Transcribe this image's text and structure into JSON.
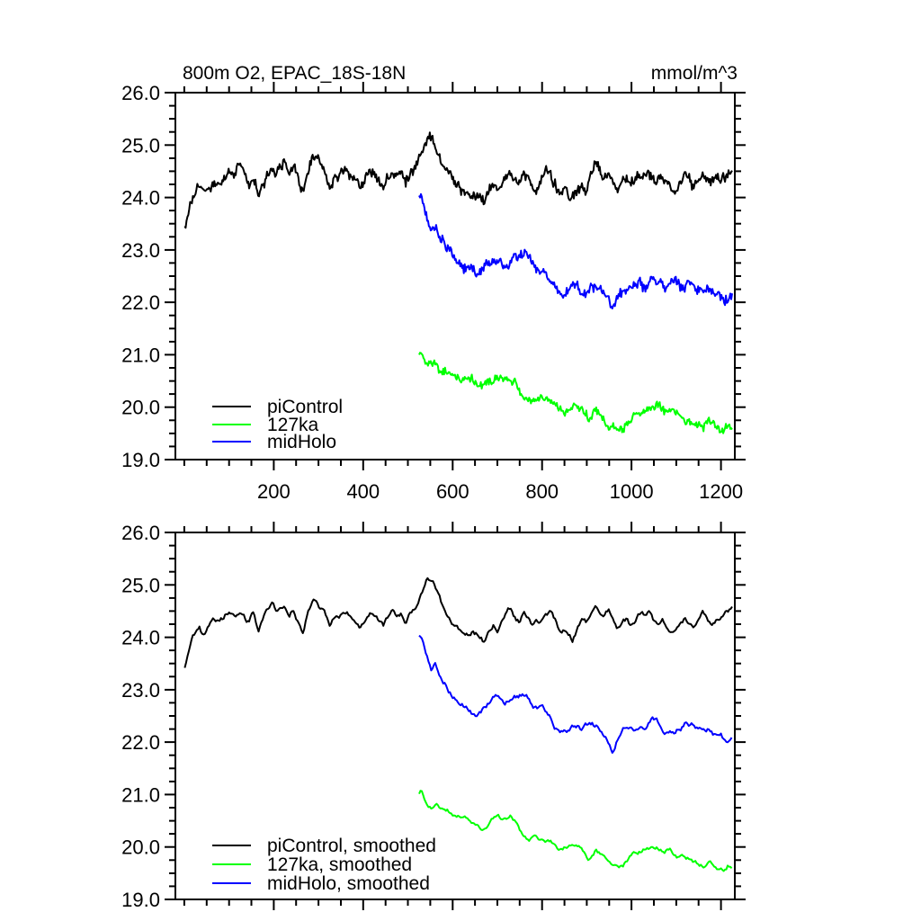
{
  "colors": {
    "background": "#ffffff",
    "axis": "#000000"
  },
  "chart_data": {
    "type": "line",
    "title": "800m O2, EPAC_18S-18N",
    "ylabel_units": "mmol/m^3",
    "grid": false,
    "x_axis": {
      "min": -20,
      "max": 1231,
      "major_ticks": [
        200,
        400,
        600,
        800,
        1000,
        1200
      ],
      "tick_labels": [
        "200",
        "400",
        "600",
        "800",
        "1000",
        "1200"
      ],
      "minor_step": 50
    },
    "y_axis": {
      "min": 19.0,
      "max": 26.0,
      "major_ticks": [
        26,
        25,
        24,
        23,
        22,
        21,
        20,
        19
      ],
      "tick_labels": [
        "26.0",
        "25.0",
        "24.0",
        "23.0",
        "22.0",
        "21.0",
        "20.0",
        "19.0"
      ],
      "minor_step": 0.25
    },
    "panels": [
      {
        "name": "raw",
        "x_labels_shown": true,
        "legend": [
          "piControl",
          "127ka",
          "midHolo"
        ],
        "legend_position": "lower-left"
      },
      {
        "name": "smoothed",
        "x_labels_shown": false,
        "legend": [
          "piControl, smoothed",
          "127ka, smoothed",
          "midHolo, smoothed"
        ],
        "legend_position": "lower-left"
      }
    ],
    "series": [
      {
        "name": "piControl",
        "color": "#000000",
        "x_start": 1,
        "x_end": 1225,
        "noise_amp_raw": 0.09,
        "noise_amp_smoothed": 0.045,
        "seed": 7,
        "anchors": [
          [
            1,
            23.45
          ],
          [
            8,
            23.7
          ],
          [
            15,
            23.9
          ],
          [
            25,
            24.1
          ],
          [
            33,
            24.2
          ],
          [
            42,
            24.0
          ],
          [
            52,
            24.15
          ],
          [
            62,
            24.25
          ],
          [
            72,
            24.3
          ],
          [
            85,
            24.35
          ],
          [
            95,
            24.45
          ],
          [
            105,
            24.5
          ],
          [
            115,
            24.45
          ],
          [
            125,
            24.55
          ],
          [
            135,
            24.4
          ],
          [
            145,
            24.3
          ],
          [
            155,
            24.5
          ],
          [
            165,
            24.15
          ],
          [
            175,
            24.3
          ],
          [
            185,
            24.45
          ],
          [
            195,
            24.6
          ],
          [
            205,
            24.5
          ],
          [
            215,
            24.6
          ],
          [
            225,
            24.65
          ],
          [
            235,
            24.5
          ],
          [
            245,
            24.6
          ],
          [
            255,
            24.3
          ],
          [
            265,
            24.15
          ],
          [
            275,
            24.45
          ],
          [
            285,
            24.7
          ],
          [
            295,
            24.75
          ],
          [
            305,
            24.6
          ],
          [
            315,
            24.45
          ],
          [
            325,
            24.25
          ],
          [
            335,
            24.35
          ],
          [
            345,
            24.4
          ],
          [
            355,
            24.5
          ],
          [
            365,
            24.45
          ],
          [
            375,
            24.3
          ],
          [
            385,
            24.25
          ],
          [
            395,
            24.2
          ],
          [
            405,
            24.35
          ],
          [
            415,
            24.45
          ],
          [
            425,
            24.4
          ],
          [
            435,
            24.3
          ],
          [
            445,
            24.2
          ],
          [
            455,
            24.35
          ],
          [
            465,
            24.5
          ],
          [
            475,
            24.4
          ],
          [
            485,
            24.45
          ],
          [
            495,
            24.3
          ],
          [
            505,
            24.45
          ],
          [
            515,
            24.55
          ],
          [
            525,
            24.7
          ],
          [
            535,
            24.9
          ],
          [
            545,
            25.1
          ],
          [
            555,
            25.05
          ],
          [
            565,
            24.85
          ],
          [
            575,
            24.6
          ],
          [
            585,
            24.45
          ],
          [
            595,
            24.3
          ],
          [
            605,
            24.2
          ],
          [
            615,
            24.1
          ],
          [
            625,
            24.05
          ],
          [
            635,
            24.0
          ],
          [
            645,
            24.1
          ],
          [
            655,
            24.05
          ],
          [
            665,
            23.95
          ],
          [
            672,
            23.9
          ],
          [
            680,
            24.05
          ],
          [
            690,
            24.25
          ],
          [
            700,
            24.15
          ],
          [
            710,
            24.3
          ],
          [
            718,
            24.45
          ],
          [
            728,
            24.55
          ],
          [
            738,
            24.4
          ],
          [
            748,
            24.3
          ],
          [
            758,
            24.45
          ],
          [
            768,
            24.4
          ],
          [
            778,
            24.2
          ],
          [
            788,
            24.25
          ],
          [
            798,
            24.3
          ],
          [
            808,
            24.4
          ],
          [
            818,
            24.45
          ],
          [
            828,
            24.3
          ],
          [
            838,
            24.1
          ],
          [
            848,
            24.15
          ],
          [
            858,
            24.0
          ],
          [
            868,
            23.92
          ],
          [
            878,
            24.1
          ],
          [
            888,
            24.25
          ],
          [
            898,
            24.2
          ],
          [
            908,
            24.35
          ],
          [
            918,
            24.5
          ],
          [
            928,
            24.45
          ],
          [
            938,
            24.35
          ],
          [
            948,
            24.5
          ],
          [
            958,
            24.35
          ],
          [
            968,
            24.2
          ],
          [
            978,
            24.3
          ],
          [
            988,
            24.35
          ],
          [
            998,
            24.2
          ],
          [
            1008,
            24.3
          ],
          [
            1018,
            24.45
          ],
          [
            1028,
            24.4
          ],
          [
            1038,
            24.5
          ],
          [
            1048,
            24.35
          ],
          [
            1058,
            24.25
          ],
          [
            1068,
            24.4
          ],
          [
            1078,
            24.25
          ],
          [
            1088,
            24.1
          ],
          [
            1098,
            24.2
          ],
          [
            1108,
            24.3
          ],
          [
            1118,
            24.4
          ],
          [
            1128,
            24.3
          ],
          [
            1138,
            24.2
          ],
          [
            1148,
            24.35
          ],
          [
            1158,
            24.45
          ],
          [
            1168,
            24.4
          ],
          [
            1178,
            24.3
          ],
          [
            1188,
            24.4
          ],
          [
            1198,
            24.3
          ],
          [
            1208,
            24.35
          ],
          [
            1218,
            24.45
          ],
          [
            1225,
            24.55
          ]
        ]
      },
      {
        "name": "127ka",
        "color": "#00ff00",
        "x_start": 525,
        "x_end": 1225,
        "noise_amp_raw": 0.07,
        "noise_amp_smoothed": 0.035,
        "seed": 13,
        "anchors": [
          [
            525,
            21.0
          ],
          [
            530,
            21.05
          ],
          [
            540,
            20.85
          ],
          [
            555,
            20.72
          ],
          [
            565,
            20.75
          ],
          [
            575,
            20.65
          ],
          [
            590,
            20.68
          ],
          [
            600,
            20.6
          ],
          [
            615,
            20.55
          ],
          [
            625,
            20.6
          ],
          [
            635,
            20.5
          ],
          [
            650,
            20.45
          ],
          [
            660,
            20.38
          ],
          [
            672,
            20.35
          ],
          [
            685,
            20.5
          ],
          [
            700,
            20.55
          ],
          [
            715,
            20.5
          ],
          [
            730,
            20.55
          ],
          [
            740,
            20.45
          ],
          [
            755,
            20.2
          ],
          [
            770,
            20.15
          ],
          [
            785,
            20.2
          ],
          [
            800,
            20.1
          ],
          [
            815,
            20.1
          ],
          [
            830,
            20.05
          ],
          [
            845,
            19.92
          ],
          [
            860,
            20.0
          ],
          [
            875,
            20.05
          ],
          [
            890,
            19.95
          ],
          [
            905,
            19.78
          ],
          [
            920,
            19.95
          ],
          [
            935,
            19.8
          ],
          [
            950,
            19.65
          ],
          [
            965,
            19.62
          ],
          [
            980,
            19.65
          ],
          [
            995,
            19.8
          ],
          [
            1010,
            19.9
          ],
          [
            1025,
            19.95
          ],
          [
            1040,
            20.0
          ],
          [
            1055,
            20.0
          ],
          [
            1070,
            19.9
          ],
          [
            1085,
            19.95
          ],
          [
            1100,
            19.85
          ],
          [
            1115,
            19.8
          ],
          [
            1130,
            19.75
          ],
          [
            1145,
            19.7
          ],
          [
            1160,
            19.65
          ],
          [
            1175,
            19.7
          ],
          [
            1190,
            19.62
          ],
          [
            1205,
            19.6
          ],
          [
            1215,
            19.68
          ],
          [
            1225,
            19.65
          ]
        ]
      },
      {
        "name": "midHolo",
        "color": "#0000ff",
        "x_start": 525,
        "x_end": 1225,
        "noise_amp_raw": 0.09,
        "noise_amp_smoothed": 0.045,
        "seed": 29,
        "anchors": [
          [
            525,
            24.0
          ],
          [
            535,
            23.85
          ],
          [
            545,
            23.6
          ],
          [
            552,
            23.4
          ],
          [
            560,
            23.55
          ],
          [
            568,
            23.35
          ],
          [
            580,
            23.2
          ],
          [
            590,
            23.05
          ],
          [
            600,
            22.9
          ],
          [
            612,
            22.8
          ],
          [
            625,
            22.7
          ],
          [
            638,
            22.6
          ],
          [
            650,
            22.52
          ],
          [
            660,
            22.6
          ],
          [
            672,
            22.7
          ],
          [
            685,
            22.8
          ],
          [
            695,
            22.85
          ],
          [
            705,
            22.78
          ],
          [
            715,
            22.7
          ],
          [
            725,
            22.8
          ],
          [
            740,
            22.85
          ],
          [
            752,
            22.9
          ],
          [
            765,
            22.92
          ],
          [
            775,
            22.8
          ],
          [
            788,
            22.65
          ],
          [
            800,
            22.7
          ],
          [
            812,
            22.6
          ],
          [
            823,
            22.45
          ],
          [
            835,
            22.25
          ],
          [
            847,
            22.18
          ],
          [
            860,
            22.25
          ],
          [
            872,
            22.3
          ],
          [
            885,
            22.25
          ],
          [
            898,
            22.3
          ],
          [
            910,
            22.36
          ],
          [
            922,
            22.3
          ],
          [
            935,
            22.25
          ],
          [
            945,
            22.1
          ],
          [
            957,
            21.88
          ],
          [
            970,
            22.15
          ],
          [
            982,
            22.3
          ],
          [
            995,
            22.3
          ],
          [
            1008,
            22.25
          ],
          [
            1020,
            22.3
          ],
          [
            1035,
            22.28
          ],
          [
            1048,
            22.45
          ],
          [
            1060,
            22.35
          ],
          [
            1072,
            22.25
          ],
          [
            1085,
            22.3
          ],
          [
            1098,
            22.25
          ],
          [
            1110,
            22.3
          ],
          [
            1123,
            22.4
          ],
          [
            1135,
            22.35
          ],
          [
            1148,
            22.28
          ],
          [
            1160,
            22.2
          ],
          [
            1172,
            22.25
          ],
          [
            1185,
            22.15
          ],
          [
            1198,
            22.2
          ],
          [
            1210,
            22.05
          ],
          [
            1225,
            22.15
          ]
        ]
      }
    ]
  }
}
